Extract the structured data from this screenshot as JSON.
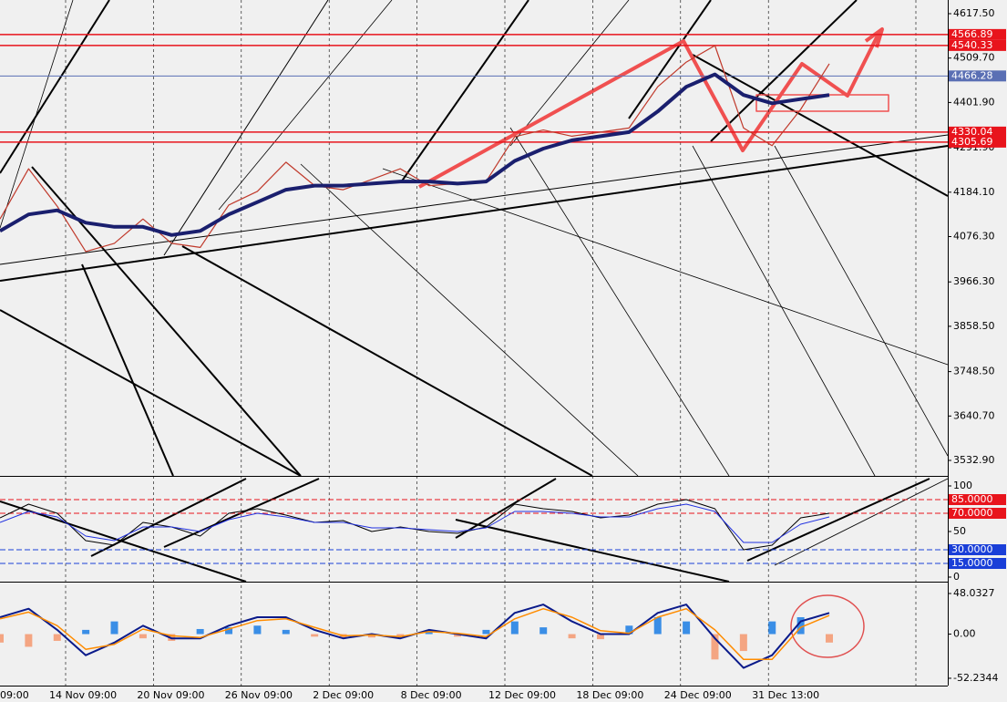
{
  "chart_data": [
    {
      "type": "line",
      "ylim": [
        3495.3,
        4650.7
      ],
      "yticks": [
        {
          "value": 4617.5,
          "label": "4617.50"
        },
        {
          "value": 4509.7,
          "label": "4509.70"
        },
        {
          "value": 4401.9,
          "label": "4401.90"
        },
        {
          "value": 4291.9,
          "label": "4291.90"
        },
        {
          "value": 4184.1,
          "label": "4184.10"
        },
        {
          "value": 4076.3,
          "label": "4076.30"
        },
        {
          "value": 3966.3,
          "label": "3966.30"
        },
        {
          "value": 3858.5,
          "label": "3858.50"
        },
        {
          "value": 3748.5,
          "label": "3748.50"
        },
        {
          "value": 3640.7,
          "label": "3640.70"
        },
        {
          "value": 3532.9,
          "label": "3532.90"
        }
      ],
      "levels": [
        {
          "value": 4566.89,
          "color": "#e8141c"
        },
        {
          "value": 4540.33,
          "color": "#e8141c"
        },
        {
          "value": 4466.28,
          "color": "#5a6fb4"
        },
        {
          "value": 4330.04,
          "color": "#e8141c"
        },
        {
          "value": 4305.69,
          "color": "#e8141c"
        }
      ],
      "time_labels": [
        "09:00",
        "14 Nov 09:00",
        "20 Nov 09:00",
        "26 Nov 09:00",
        "2 Dec 09:00",
        "8 Dec 09:00",
        "12 Dec 09:00",
        "18 Dec 09:00",
        "24 Dec 09:00",
        "31 Dec 13:00"
      ],
      "series": [
        {
          "color": "#c0392b",
          "width": 1.2,
          "values": [
            4119,
            4241,
            4150,
            4040,
            4060,
            4119,
            4060,
            4050,
            4153,
            4186,
            4257,
            4200,
            4190,
            4215,
            4241,
            4200,
            4205,
            4210,
            4319,
            4335,
            4320,
            4330,
            4340,
            4440,
            4500,
            4540,
            4340,
            4297,
            4385,
            4496
          ]
        },
        {
          "color": "#1a1f6e",
          "width": 4,
          "values": [
            4090,
            4130,
            4140,
            4110,
            4100,
            4100,
            4080,
            4090,
            4130,
            4160,
            4190,
            4200,
            4200,
            4205,
            4210,
            4210,
            4205,
            4210,
            4260,
            4290,
            4310,
            4320,
            4330,
            4380,
            4440,
            4470,
            4420,
            4400,
            4410,
            4420
          ]
        }
      ]
    },
    {
      "type": "line",
      "ylim": [
        -5,
        108
      ],
      "yticks": [
        100,
        50,
        0
      ],
      "levels": [
        {
          "value": 85,
          "label": "85.0000",
          "color": "#e8141c"
        },
        {
          "value": 70,
          "label": "70.0000",
          "color": "#e8141c"
        },
        {
          "value": 30,
          "label": "30.0000",
          "color": "#1a3fd8"
        },
        {
          "value": 15,
          "label": "15.0000",
          "color": "#1a3fd8"
        }
      ],
      "series": [
        {
          "color": "#000000",
          "width": 1,
          "values": [
            65,
            80,
            70,
            40,
            35,
            60,
            55,
            45,
            70,
            75,
            68,
            60,
            62,
            50,
            55,
            50,
            48,
            55,
            80,
            75,
            72,
            65,
            68,
            80,
            85,
            75,
            30,
            35,
            65,
            70
          ]
        },
        {
          "color": "#2030e0",
          "width": 1,
          "values": [
            60,
            72,
            66,
            45,
            40,
            55,
            55,
            50,
            63,
            70,
            66,
            60,
            60,
            54,
            54,
            52,
            50,
            54,
            72,
            72,
            70,
            66,
            66,
            75,
            80,
            72,
            38,
            38,
            58,
            66
          ]
        }
      ]
    },
    {
      "type": "bar",
      "ylim": [
        -60.9,
        58.8
      ],
      "yticks": [
        {
          "value": 48.0327,
          "label": "48.0327"
        },
        {
          "value": 0,
          "label": "0.00"
        },
        {
          "value": -52.2344,
          "label": "-52.2344"
        }
      ],
      "positive_color": "#3a8ee6",
      "negative_color": "#f4a582",
      "values": [
        -10,
        -15,
        -8,
        5,
        15,
        -5,
        -8,
        6,
        8,
        10,
        5,
        -3,
        -5,
        -4,
        -2,
        4,
        -3,
        5,
        15,
        8,
        -5,
        -6,
        10,
        20,
        15,
        -30,
        -20,
        15,
        20,
        -10
      ],
      "series": [
        {
          "color": "#0a1a8a",
          "width": 2,
          "values": [
            20,
            30,
            5,
            -25,
            -10,
            10,
            -5,
            -5,
            10,
            20,
            20,
            5,
            -5,
            0,
            -5,
            5,
            0,
            -5,
            25,
            35,
            15,
            0,
            0,
            25,
            35,
            -5,
            -40,
            -25,
            15,
            25
          ]
        },
        {
          "color": "#ff8c00",
          "width": 1.5,
          "values": [
            18,
            26,
            10,
            -18,
            -12,
            6,
            -2,
            -4,
            6,
            16,
            18,
            8,
            -2,
            -1,
            -3,
            3,
            1,
            -3,
            18,
            30,
            20,
            4,
            1,
            20,
            30,
            5,
            -30,
            -30,
            8,
            22
          ]
        }
      ]
    }
  ]
}
